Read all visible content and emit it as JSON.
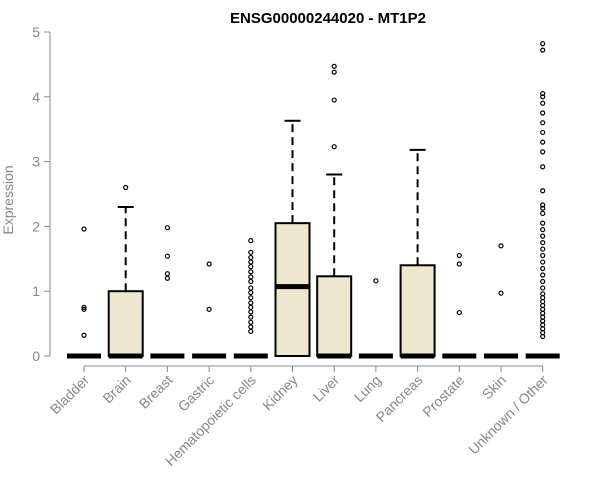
{
  "chart_data": {
    "type": "boxplot",
    "title": "ENSG00000244020 - MT1P2",
    "ylabel": "Expression",
    "xlabel": "",
    "ylim": [
      0,
      5
    ],
    "yticks": [
      "0",
      "1",
      "2",
      "3",
      "4",
      "5"
    ],
    "grid": false,
    "legend": "none",
    "box_fill": "#efe8cf",
    "categories": [
      "Bladder",
      "Brain",
      "Breast",
      "Gastric",
      "Hematopoietic cells",
      "Kidney",
      "Liver",
      "Lung",
      "Pancreas",
      "Prostate",
      "Skin",
      "Unknown / Other"
    ],
    "boxes": [
      {
        "q1": 0,
        "median": 0,
        "q3": 0,
        "whisker_high": 0,
        "outliers": [
          0.32,
          0.72,
          0.75,
          1.96
        ]
      },
      {
        "q1": 0,
        "median": 0,
        "q3": 1.0,
        "whisker_high": 2.3,
        "outliers": [
          2.6
        ]
      },
      {
        "q1": 0,
        "median": 0,
        "q3": 0,
        "whisker_high": 0,
        "outliers": [
          1.2,
          1.27,
          1.54,
          1.98
        ]
      },
      {
        "q1": 0,
        "median": 0,
        "q3": 0,
        "whisker_high": 0,
        "outliers": [
          0.72,
          1.42
        ]
      },
      {
        "q1": 0,
        "median": 0,
        "q3": 0,
        "whisker_high": 0,
        "outliers": [
          0.38,
          0.45,
          0.52,
          0.6,
          0.68,
          0.75,
          0.82,
          0.9,
          0.98,
          1.05,
          1.15,
          1.22,
          1.3,
          1.38,
          1.45,
          1.52,
          1.6,
          1.78
        ]
      },
      {
        "q1": 0,
        "median": 1.07,
        "q3": 2.05,
        "whisker_high": 3.63,
        "outliers": []
      },
      {
        "q1": 0,
        "median": 0,
        "q3": 1.23,
        "whisker_high": 2.8,
        "outliers": [
          3.23,
          3.95,
          4.38,
          4.47
        ]
      },
      {
        "q1": 0,
        "median": 0,
        "q3": 0,
        "whisker_high": 0,
        "outliers": [
          1.16
        ]
      },
      {
        "q1": 0,
        "median": 0,
        "q3": 1.4,
        "whisker_high": 3.18,
        "outliers": []
      },
      {
        "q1": 0,
        "median": 0,
        "q3": 0,
        "whisker_high": 0,
        "outliers": [
          0.67,
          1.42,
          1.55
        ]
      },
      {
        "q1": 0,
        "median": 0,
        "q3": 0,
        "whisker_high": 0,
        "outliers": [
          0.97,
          1.7
        ]
      },
      {
        "q1": 0,
        "median": 0,
        "q3": 0,
        "whisker_high": 0,
        "outliers": [
          0.3,
          0.36,
          0.42,
          0.48,
          0.54,
          0.6,
          0.66,
          0.72,
          0.78,
          0.84,
          0.9,
          0.96,
          1.05,
          1.15,
          1.25,
          1.35,
          1.45,
          1.55,
          1.65,
          1.75,
          1.85,
          1.95,
          2.05,
          2.2,
          2.28,
          2.33,
          2.55,
          2.92,
          3.15,
          3.3,
          3.45,
          3.6,
          3.75,
          3.9,
          4.0,
          4.05,
          4.72,
          4.82
        ]
      }
    ]
  }
}
